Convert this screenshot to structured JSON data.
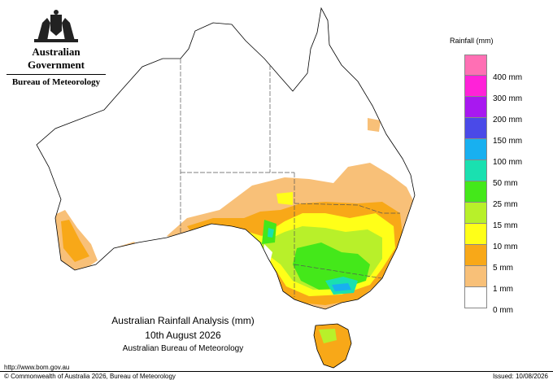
{
  "header": {
    "government": "Australian Government",
    "agency": "Bureau of Meteorology",
    "crest_icon": "commonwealth-coat-of-arms-icon"
  },
  "legend": {
    "title": "Rainfall (mm)",
    "items": [
      {
        "label": "",
        "color": "#ff6fb4"
      },
      {
        "label": "400 mm",
        "color": "#ff22d8"
      },
      {
        "label": "300 mm",
        "color": "#a818f0"
      },
      {
        "label": "200 mm",
        "color": "#4a4ae8"
      },
      {
        "label": "150 mm",
        "color": "#18b0f0"
      },
      {
        "label": "100 mm",
        "color": "#1ae0b0"
      },
      {
        "label": "50 mm",
        "color": "#44e81a"
      },
      {
        "label": "25 mm",
        "color": "#b8f02a"
      },
      {
        "label": "15 mm",
        "color": "#ffff18"
      },
      {
        "label": "10 mm",
        "color": "#f8a818"
      },
      {
        "label": "5 mm",
        "color": "#f8c078"
      },
      {
        "label": "1 mm",
        "color": "#ffffff"
      },
      {
        "label": "0 mm",
        "color": ""
      }
    ]
  },
  "caption": {
    "title": "Australian Rainfall Analysis (mm)",
    "date": "10th August 2026",
    "org": "Australian Bureau of Meteorology"
  },
  "footer": {
    "url": "http://www.bom.gov.au",
    "copyright": "© Commonwealth of Australia 2026, Bureau of Meteorology",
    "issued": "Issued: 10/08/2026"
  },
  "colors": {
    "coast": "#000000",
    "border": "#555555",
    "mm_1": "#f8c078",
    "mm_5": "#f8a818",
    "mm_10": "#ffff18",
    "mm_15": "#b8f02a",
    "mm_25": "#44e81a",
    "mm_50": "#1ae0b0",
    "mm_100": "#18b0f0"
  }
}
